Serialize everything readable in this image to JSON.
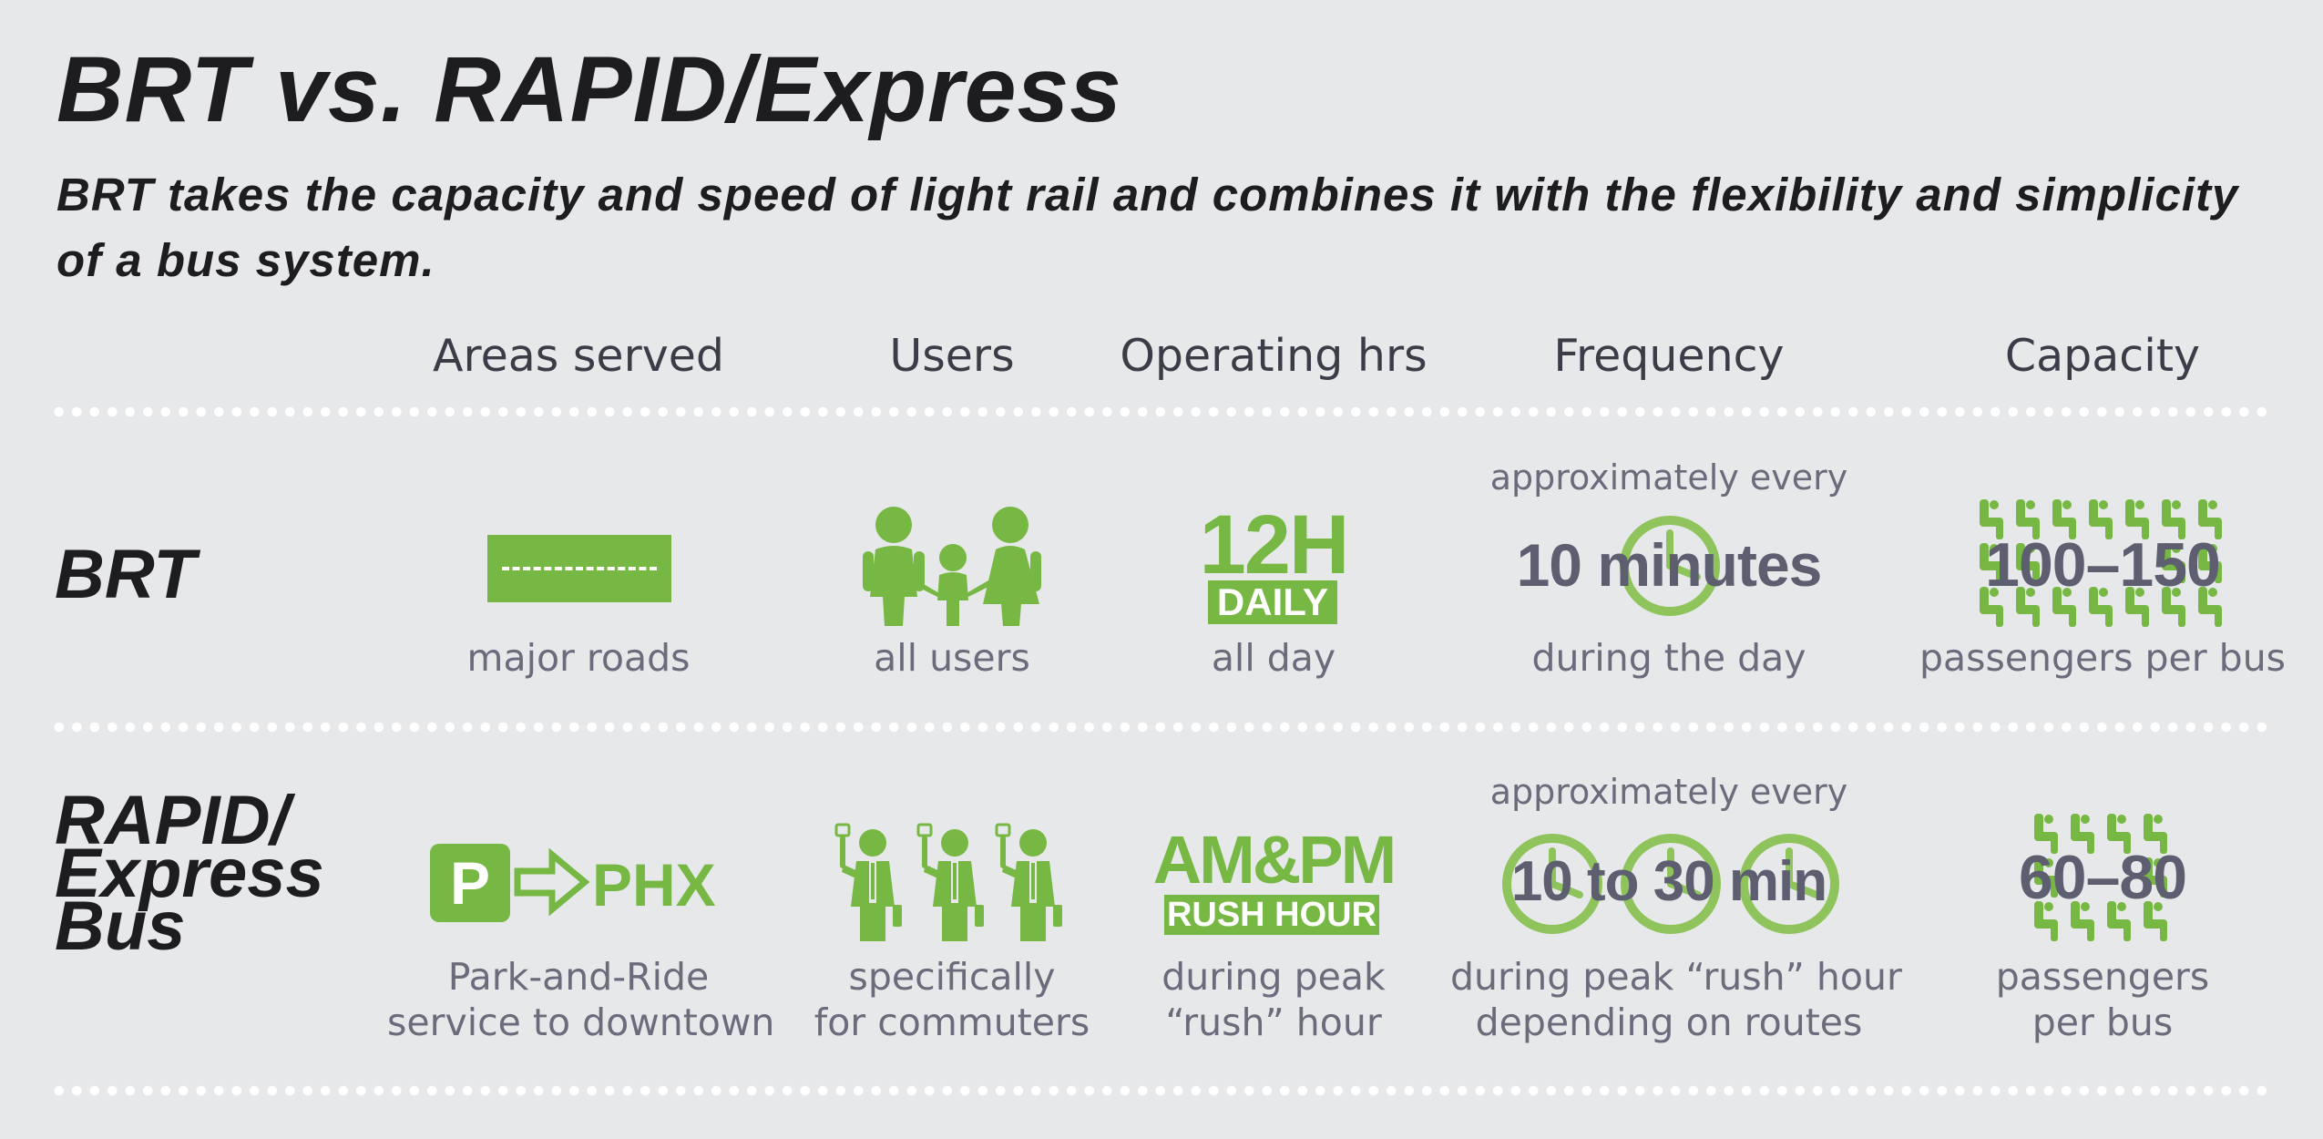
{
  "title": "BRT vs. RAPID/Express",
  "subtitle": "BRT takes the capacity and speed of light rail and combines it with the flexibility and simplicity of a bus system.",
  "columns": [
    "Areas served",
    "Users",
    "Operating hrs",
    "Frequency",
    "Capacity"
  ],
  "rows": {
    "brt": {
      "label": "BRT",
      "areas_caption": "major roads",
      "users_caption": "all users",
      "hours_big": "12H",
      "hours_bar": "DAILY",
      "hours_caption": "all day",
      "freq_top": "approximately every",
      "freq_value": "10 minutes",
      "freq_caption": "during the day",
      "capacity_value": "100–150",
      "capacity_caption": "passengers per bus"
    },
    "rapid": {
      "label_line1": "RAPID/",
      "label_line2": "Express",
      "label_line3": "Bus",
      "areas_parking": "P",
      "areas_dest": "PHX",
      "areas_caption_line1": "Park-and-Ride",
      "areas_caption_line2": "service to downtown",
      "users_caption_line1": "specifically",
      "users_caption_line2": "for commuters",
      "hours_big": "AM&PM",
      "hours_bar": "RUSH HOUR",
      "hours_caption_line1": "during peak",
      "hours_caption_line2": "“rush” hour",
      "freq_top": "approximately every",
      "freq_value": "10 to 30 min",
      "freq_caption_line1": "during peak “rush” hour",
      "freq_caption_line2": "depending on routes",
      "capacity_value": "60–80",
      "capacity_caption_line1": "passengers",
      "capacity_caption_line2": "per bus"
    }
  },
  "icons": {
    "road": "road-icon",
    "family": "family-icon",
    "parking": "parking-icon",
    "arrow": "arrow-right-icon",
    "commuter": "commuter-icon",
    "clock": "clock-icon",
    "seat": "seat-icon"
  },
  "colors": {
    "accent": "#76b843",
    "background": "#e7e8ea",
    "text": "#1d1d1f",
    "muted": "#6b6b7c",
    "overlay": "#5d5e70"
  }
}
